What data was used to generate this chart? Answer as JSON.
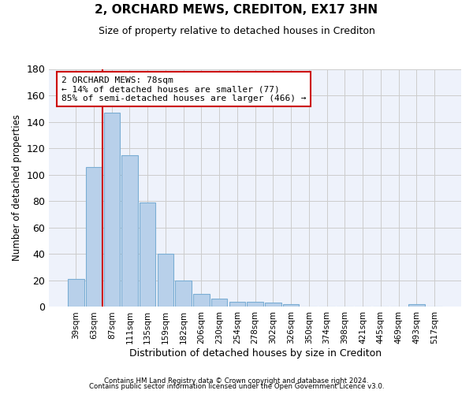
{
  "title": "2, ORCHARD MEWS, CREDITON, EX17 3HN",
  "subtitle": "Size of property relative to detached houses in Crediton",
  "xlabel": "Distribution of detached houses by size in Crediton",
  "ylabel": "Number of detached properties",
  "bar_color": "#b8d0ea",
  "bar_edge_color": "#7aadd4",
  "categories": [
    "39sqm",
    "63sqm",
    "87sqm",
    "111sqm",
    "135sqm",
    "159sqm",
    "182sqm",
    "206sqm",
    "230sqm",
    "254sqm",
    "278sqm",
    "302sqm",
    "326sqm",
    "350sqm",
    "374sqm",
    "398sqm",
    "421sqm",
    "445sqm",
    "469sqm",
    "493sqm",
    "517sqm"
  ],
  "values": [
    21,
    106,
    147,
    115,
    79,
    40,
    20,
    10,
    6,
    4,
    4,
    3,
    2,
    0,
    0,
    0,
    0,
    0,
    0,
    2,
    0
  ],
  "ylim": [
    0,
    180
  ],
  "yticks": [
    0,
    20,
    40,
    60,
    80,
    100,
    120,
    140,
    160,
    180
  ],
  "vline_color": "#cc0000",
  "annotation_text": "2 ORCHARD MEWS: 78sqm\n← 14% of detached houses are smaller (77)\n85% of semi-detached houses are larger (466) →",
  "footer1": "Contains HM Land Registry data © Crown copyright and database right 2024.",
  "footer2": "Contains public sector information licensed under the Open Government Licence v3.0.",
  "bg_color": "#eef2fb",
  "grid_color": "#cccccc"
}
